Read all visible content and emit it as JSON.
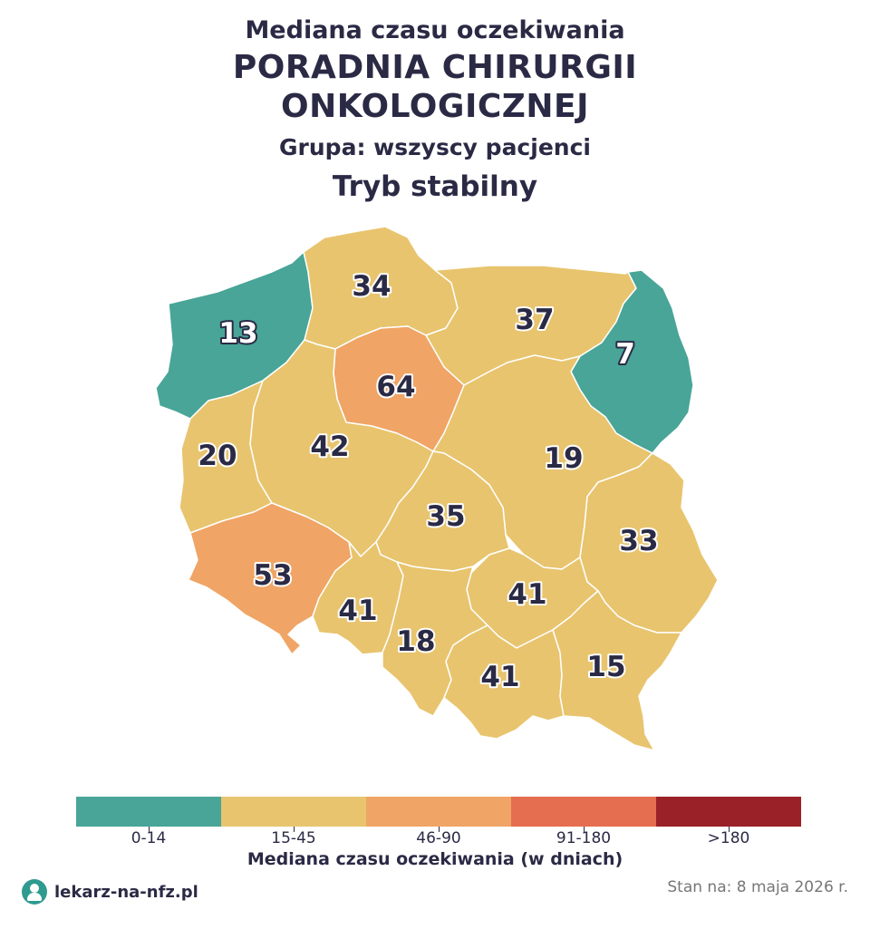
{
  "title": {
    "top": "Mediana czasu oczekiwania",
    "main_line1": "PORADNIA CHIRURGII",
    "main_line2": "ONKOLOGICZNEJ",
    "group": "Grupa: wszyscy pacjenci",
    "mode": "Tryb stabilny"
  },
  "colors": {
    "0-14": "#48a598",
    "15-45": "#e8c46e",
    "46-90": "#f0a465",
    "91-180": "#e56e50",
    ">180": "#9a2127"
  },
  "regions": [
    {
      "name": "zachodniopomorskie",
      "value": "13",
      "category": "0-14"
    },
    {
      "name": "pomorskie",
      "value": "34",
      "category": "15-45"
    },
    {
      "name": "warmińsko-mazurskie",
      "value": "37",
      "category": "15-45"
    },
    {
      "name": "podlaskie",
      "value": "7",
      "category": "0-14"
    },
    {
      "name": "kujawsko-pomorskie",
      "value": "64",
      "category": "46-90"
    },
    {
      "name": "lubuskie",
      "value": "20",
      "category": "15-45"
    },
    {
      "name": "wielkopolskie",
      "value": "42",
      "category": "15-45"
    },
    {
      "name": "mazowieckie",
      "value": "19",
      "category": "15-45"
    },
    {
      "name": "łódzkie",
      "value": "35",
      "category": "15-45"
    },
    {
      "name": "lubelskie",
      "value": "33",
      "category": "15-45"
    },
    {
      "name": "dolnośląskie",
      "value": "53",
      "category": "46-90"
    },
    {
      "name": "opolskie",
      "value": "41",
      "category": "15-45"
    },
    {
      "name": "świętokrzyskie",
      "value": "41",
      "category": "15-45"
    },
    {
      "name": "śląskie",
      "value": "18",
      "category": "15-45"
    },
    {
      "name": "małopolskie",
      "value": "41",
      "category": "15-45"
    },
    {
      "name": "podkarpackie",
      "value": "15",
      "category": "15-45"
    }
  ],
  "legend": {
    "items": [
      {
        "label": "0-14",
        "color": "#48a598"
      },
      {
        "label": "15-45",
        "color": "#e8c46e"
      },
      {
        "label": "46-90",
        "color": "#f0a465"
      },
      {
        "label": "91-180",
        "color": "#e56e50"
      },
      {
        "label": ">180",
        "color": "#9a2127"
      }
    ],
    "title": "Mediana czasu oczekiwania (w dniach)"
  },
  "footer": {
    "brand": "lekarz-na-nfz.pl",
    "date": "Stan na: 8 maja 2026 r."
  }
}
